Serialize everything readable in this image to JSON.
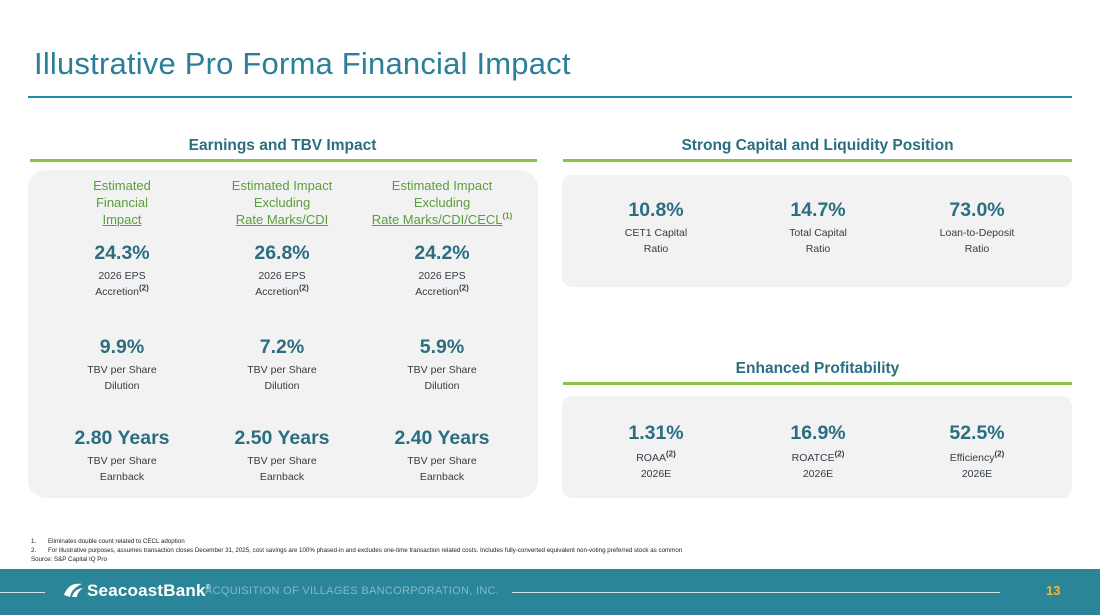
{
  "title": "Illustrative Pro Forma Financial Impact",
  "colors": {
    "accent_teal": "#2b7f98",
    "accent_green": "#8bc34a",
    "footer_bg": "#2a8598",
    "page_number": "#f2b733"
  },
  "earnings": {
    "heading": "Earnings and TBV Impact",
    "columns": [
      {
        "head_lines": [
          "Estimated",
          "Financial"
        ],
        "head_underlined": "Impact",
        "head_sup": "",
        "eps": {
          "value": "24.3%",
          "label1": "2026 EPS",
          "label2": "Accretion",
          "sup": "(2)"
        },
        "tbv": {
          "value": "9.9%",
          "label1": "TBV per Share",
          "label2": "Dilution"
        },
        "earnback": {
          "value": "2.80 Years",
          "label1": "TBV per Share",
          "label2": "Earnback"
        }
      },
      {
        "head_lines": [
          "Estimated Impact",
          "Excluding"
        ],
        "head_underlined": "Rate Marks/CDI",
        "head_sup": "",
        "eps": {
          "value": "26.8%",
          "label1": "2026 EPS",
          "label2": "Accretion",
          "sup": "(2)"
        },
        "tbv": {
          "value": "7.2%",
          "label1": "TBV per Share",
          "label2": "Dilution"
        },
        "earnback": {
          "value": "2.50 Years",
          "label1": "TBV per Share",
          "label2": "Earnback"
        }
      },
      {
        "head_lines": [
          "Estimated Impact",
          "Excluding"
        ],
        "head_underlined": "Rate Marks/CDI/CECL",
        "head_sup": "(1)",
        "eps": {
          "value": "24.2%",
          "label1": "2026 EPS",
          "label2": "Accretion",
          "sup": "(2)"
        },
        "tbv": {
          "value": "5.9%",
          "label1": "TBV per Share",
          "label2": "Dilution"
        },
        "earnback": {
          "value": "2.40 Years",
          "label1": "TBV per Share",
          "label2": "Earnback"
        }
      }
    ]
  },
  "capital": {
    "heading": "Strong Capital and Liquidity Position",
    "metrics": [
      {
        "value": "10.8%",
        "label1": "CET1 Capital",
        "label2": "Ratio"
      },
      {
        "value": "14.7%",
        "label1": "Total Capital",
        "label2": "Ratio"
      },
      {
        "value": "73.0%",
        "label1": "Loan-to-Deposit",
        "label2": "Ratio"
      }
    ]
  },
  "profitability": {
    "heading": "Enhanced Profitability",
    "metrics": [
      {
        "value": "1.31%",
        "label1": "ROAA",
        "sup": "(2)",
        "label2": "2026E"
      },
      {
        "value": "16.9%",
        "label1": "ROATCE",
        "sup": "(2)",
        "label2": "2026E"
      },
      {
        "value": "52.5%",
        "label1": "Efficiency",
        "sup": "(2)",
        "label2": "2026E"
      }
    ]
  },
  "footnotes": [
    {
      "num": "1.",
      "text": "Eliminates double count related to CECL adoption"
    },
    {
      "num": "2.",
      "text": "For illustrative purposes, assumes transaction closes December 31, 2025, cost savings are 100% phased-in and excludes one-time transaction related costs. Includes fully-converted equivalent non-voting preferred stock as common"
    }
  ],
  "source": "Source: S&P Capital IQ Pro",
  "footer": {
    "logo_text": "SeacoastBank",
    "logo_sup": "®",
    "text": "ACQUISITION OF VILLAGES BANCORPORATION, INC.",
    "page_number": "13"
  }
}
